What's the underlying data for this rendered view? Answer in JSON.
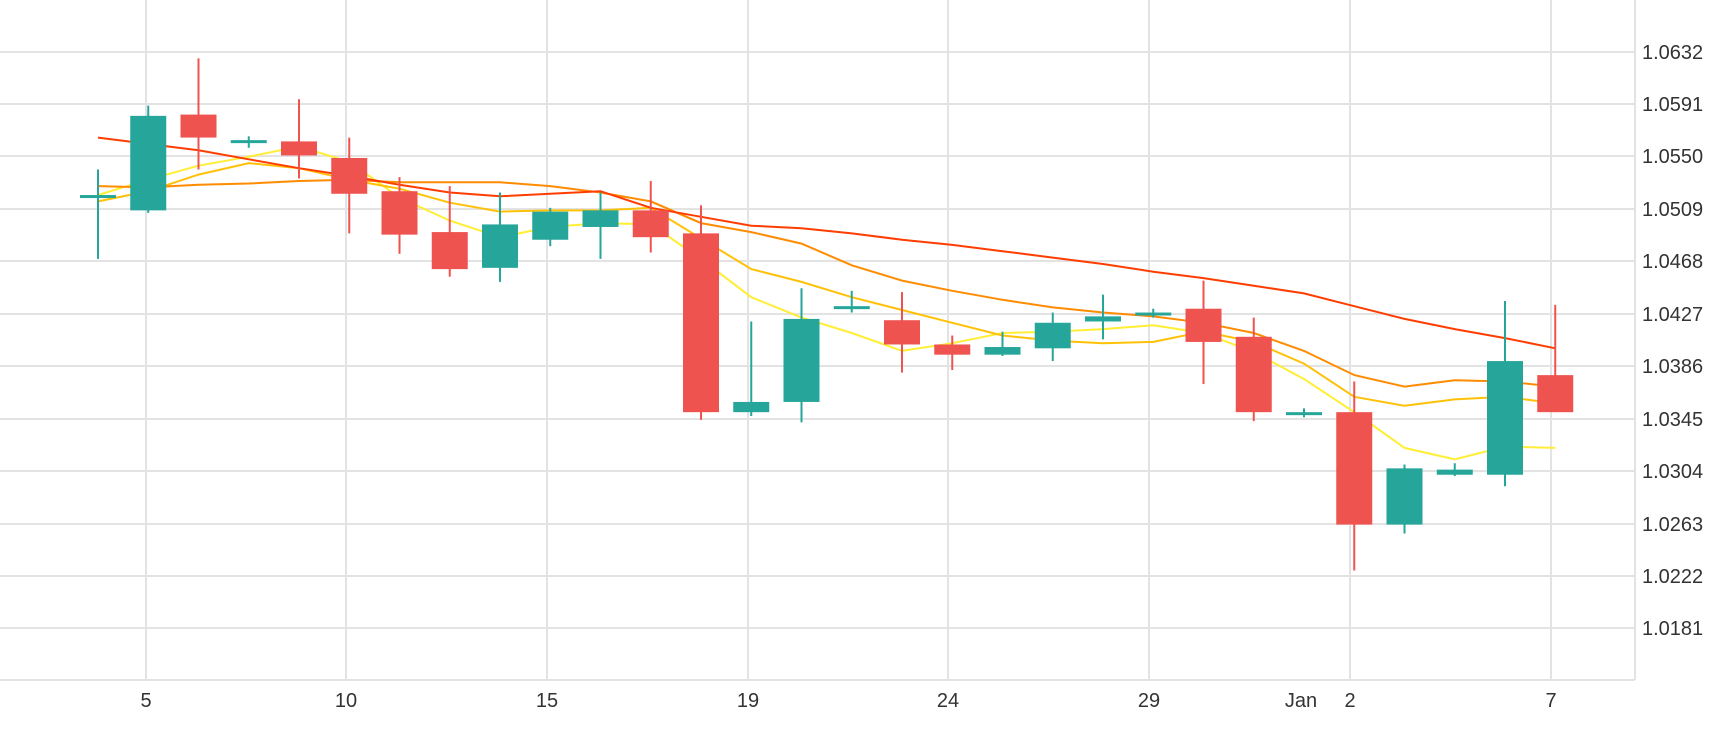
{
  "chart_data": {
    "type": "candlestick",
    "x_ticks": [
      "5",
      "10",
      "15",
      "19",
      "24",
      "29",
      "Jan",
      "2",
      "7"
    ],
    "y_ticks": [
      "1.0632",
      "1.0591",
      "1.0550",
      "1.0509",
      "1.0468",
      "1.0427",
      "1.0386",
      "1.0345",
      "1.0304",
      "1.0263",
      "1.0222",
      "1.0181"
    ],
    "ylim": [
      1.014,
      1.068
    ],
    "grid": true,
    "colors": {
      "up": "#26a69a",
      "down": "#ef5350",
      "grid": "#e3e3e3",
      "text": "#333333"
    },
    "candles": [
      {
        "o": 1.052,
        "h": 1.054,
        "l": 1.047,
        "c": 1.052
      },
      {
        "o": 1.0508,
        "h": 1.059,
        "l": 1.0506,
        "c": 1.0582
      },
      {
        "o": 1.0583,
        "h": 1.0627,
        "l": 1.054,
        "c": 1.0565
      },
      {
        "o": 1.0561,
        "h": 1.0566,
        "l": 1.0557,
        "c": 1.0563
      },
      {
        "o": 1.0562,
        "h": 1.0595,
        "l": 1.0533,
        "c": 1.0551
      },
      {
        "o": 1.0549,
        "h": 1.0565,
        "l": 1.049,
        "c": 1.0521
      },
      {
        "o": 1.0523,
        "h": 1.0534,
        "l": 1.0474,
        "c": 1.0489
      },
      {
        "o": 1.0491,
        "h": 1.0527,
        "l": 1.0456,
        "c": 1.0462
      },
      {
        "o": 1.0463,
        "h": 1.0522,
        "l": 1.0452,
        "c": 1.0497
      },
      {
        "o": 1.0485,
        "h": 1.051,
        "l": 1.048,
        "c": 1.0507
      },
      {
        "o": 1.0495,
        "h": 1.0522,
        "l": 1.047,
        "c": 1.0508
      },
      {
        "o": 1.0508,
        "h": 1.0531,
        "l": 1.0475,
        "c": 1.0487
      },
      {
        "o": 1.049,
        "h": 1.0512,
        "l": 1.0344,
        "c": 1.035
      },
      {
        "o": 1.035,
        "h": 1.0421,
        "l": 1.0347,
        "c": 1.0358
      },
      {
        "o": 1.0358,
        "h": 1.0447,
        "l": 1.0342,
        "c": 1.0423
      },
      {
        "o": 1.0431,
        "h": 1.0445,
        "l": 1.0428,
        "c": 1.0433
      },
      {
        "o": 1.0422,
        "h": 1.0444,
        "l": 1.0381,
        "c": 1.0403
      },
      {
        "o": 1.0403,
        "h": 1.041,
        "l": 1.0383,
        "c": 1.0395
      },
      {
        "o": 1.0395,
        "h": 1.0413,
        "l": 1.0394,
        "c": 1.0401
      },
      {
        "o": 1.04,
        "h": 1.0428,
        "l": 1.039,
        "c": 1.042
      },
      {
        "o": 1.0421,
        "h": 1.0442,
        "l": 1.0407,
        "c": 1.0425
      },
      {
        "o": 1.0426,
        "h": 1.0431,
        "l": 1.0424,
        "c": 1.0428
      },
      {
        "o": 1.0431,
        "h": 1.0453,
        "l": 1.0372,
        "c": 1.0405
      },
      {
        "o": 1.0409,
        "h": 1.0424,
        "l": 1.0343,
        "c": 1.035
      },
      {
        "o": 1.035,
        "h": 1.0353,
        "l": 1.0346,
        "c": 1.035
      },
      {
        "o": 1.035,
        "h": 1.0374,
        "l": 1.0226,
        "c": 1.0262
      },
      {
        "o": 1.0262,
        "h": 1.0309,
        "l": 1.0255,
        "c": 1.0306
      },
      {
        "o": 1.0301,
        "h": 1.031,
        "l": 1.03,
        "c": 1.0305
      },
      {
        "o": 1.0301,
        "h": 1.0437,
        "l": 1.0292,
        "c": 1.039
      },
      {
        "o": 1.0379,
        "h": 1.0434,
        "l": 1.035,
        "c": 1.035
      }
    ],
    "moving_averages": [
      {
        "color": "#ffee33",
        "values": [
          1.052,
          1.0532,
          1.0543,
          1.055,
          1.0558,
          1.0546,
          1.0518,
          1.05,
          1.0487,
          1.0495,
          1.0498,
          1.0497,
          1.047,
          1.044,
          1.0424,
          1.0412,
          1.0398,
          1.0404,
          1.0412,
          1.0413,
          1.0415,
          1.0418,
          1.0412,
          1.0397,
          1.0376,
          1.035,
          1.0322,
          1.0313,
          1.0323,
          1.0322
        ]
      },
      {
        "color": "#ffc107",
        "values": [
          1.0515,
          1.0523,
          1.0536,
          1.0545,
          1.0541,
          1.0532,
          1.0525,
          1.0514,
          1.0507,
          1.0508,
          1.0508,
          1.051,
          1.0486,
          1.0462,
          1.0452,
          1.044,
          1.043,
          1.042,
          1.041,
          1.0406,
          1.0404,
          1.0405,
          1.0413,
          1.0405,
          1.0388,
          1.0362,
          1.0355,
          1.036,
          1.0362,
          1.0357
        ]
      },
      {
        "color": "#ff8c00",
        "values": [
          1.0527,
          1.0526,
          1.0528,
          1.0529,
          1.0531,
          1.0532,
          1.053,
          1.053,
          1.053,
          1.0527,
          1.0522,
          1.0515,
          1.0498,
          1.0491,
          1.0482,
          1.0465,
          1.0453,
          1.0445,
          1.0438,
          1.0432,
          1.0428,
          1.0425,
          1.042,
          1.0412,
          1.0398,
          1.0379,
          1.037,
          1.0375,
          1.0374,
          1.037
        ]
      },
      {
        "color": "#ff3d00",
        "values": [
          1.0565,
          1.056,
          1.0555,
          1.0548,
          1.0541,
          1.0535,
          1.0528,
          1.0522,
          1.0519,
          1.0521,
          1.0523,
          1.051,
          1.0503,
          1.0496,
          1.0494,
          1.049,
          1.0485,
          1.0481,
          1.0476,
          1.0471,
          1.0466,
          1.046,
          1.0455,
          1.0449,
          1.0443,
          1.0433,
          1.0423,
          1.0415,
          1.0408,
          1.04
        ]
      }
    ]
  }
}
